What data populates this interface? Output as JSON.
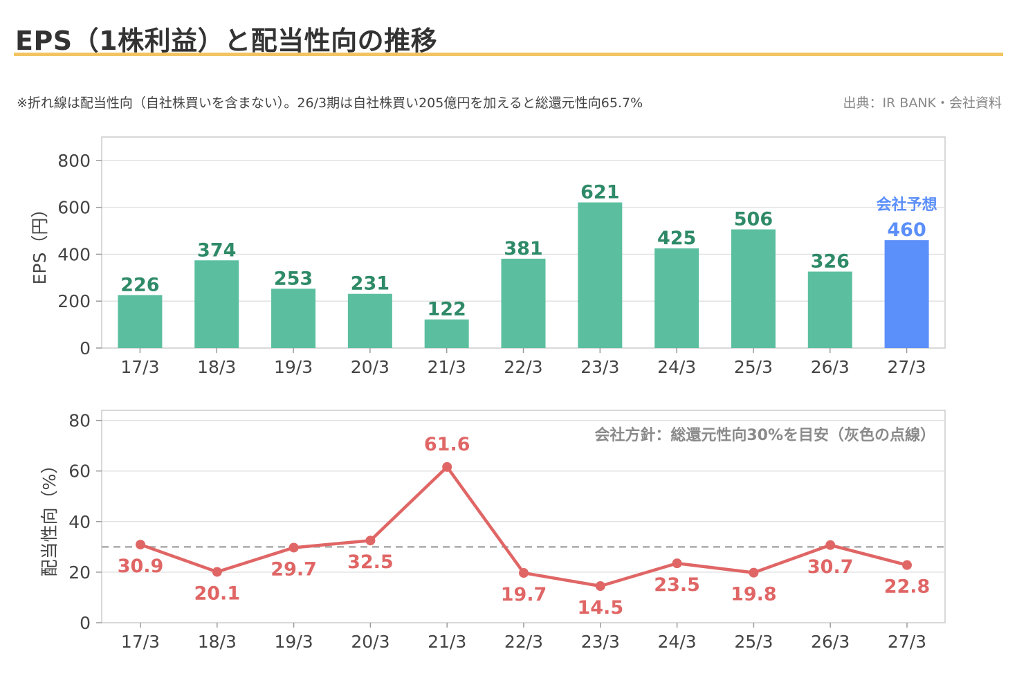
{
  "header": {
    "title": "EPS（1株利益）と配当性向の推移",
    "note": "※折れ線は配当性向（自社株買いを含まない）。26/3期は自社株買い205億円を加えると総還元性向65.7%",
    "source": "出典：IR BANK・会社資料"
  },
  "colors": {
    "eps_bar": "#5bbf9f",
    "eps_label": "#2e8a67",
    "forecast_bar": "#5b8ff9",
    "payout_line": "#e06666",
    "reference_line": "#aaaaaa",
    "title_rule": "#f2c462"
  },
  "chart_data": [
    {
      "type": "bar",
      "categories": [
        "17/3",
        "18/3",
        "19/3",
        "20/3",
        "21/3",
        "22/3",
        "23/3",
        "24/3",
        "25/3",
        "26/3",
        "27/3"
      ],
      "values": [
        226,
        374,
        253,
        231,
        122,
        381,
        621,
        425,
        506,
        326,
        460
      ],
      "forecast_index": 10,
      "forecast_label": "会社予想",
      "ylabel": "EPS（円）",
      "ylim": [
        0,
        900
      ],
      "yticks": [
        0,
        200,
        400,
        600,
        800
      ],
      "grid": true
    },
    {
      "type": "line",
      "categories": [
        "17/3",
        "18/3",
        "19/3",
        "20/3",
        "21/3",
        "22/3",
        "23/3",
        "24/3",
        "25/3",
        "26/3",
        "27/3"
      ],
      "values": [
        30.9,
        20.1,
        29.7,
        32.5,
        61.6,
        19.7,
        14.5,
        23.5,
        19.8,
        30.7,
        22.8
      ],
      "ylabel": "配当性向（%）",
      "ylim": [
        0,
        80
      ],
      "yticks": [
        0,
        20,
        40,
        60,
        80
      ],
      "reference_value": 30,
      "reference_note": "会社方針：総還元性向30%を目安（灰色の点線）",
      "grid": true
    }
  ]
}
